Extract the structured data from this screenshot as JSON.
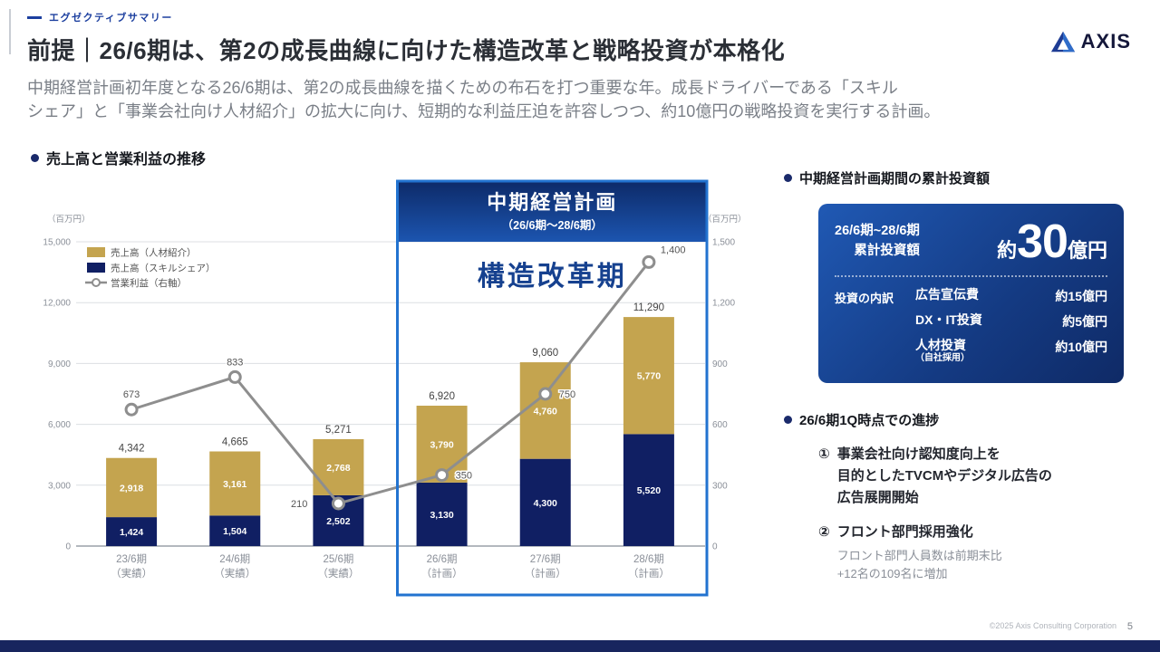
{
  "slide": {
    "eyebrow": "エグゼクティブサマリー",
    "title": "前提｜26/6期は、第2の成長曲線に向けた構造改革と戦略投資が本格化",
    "lead": "中期経営計画初年度となる26/6期は、第2の成長曲線を描くための布石を打つ重要な年。成長ドライバーである「スキル\nシェア」と「事業会社向け人材紹介」の拡大に向け、短期的な利益圧迫を許容しつつ、約10億円の戦略投資を実行する計画。",
    "logo_text": "AXIS",
    "footer_copyright": "©2025 Axis Consulting Corporation",
    "page_number": "5"
  },
  "chart_section": {
    "heading": "売上高と営業利益の推移"
  },
  "chart_data": {
    "type": "bar",
    "subtype": "stacked bars with line on secondary axis",
    "categories": [
      "23/6期",
      "24/6期",
      "25/6期",
      "26/6期",
      "27/6期",
      "28/6期"
    ],
    "category_notes": [
      "（実績）",
      "（実績）",
      "（実績）",
      "（計画）",
      "（計画）",
      "（計画）"
    ],
    "series": [
      {
        "name": "売上高（人材紹介）",
        "type": "bar",
        "stack": "top",
        "color": "#c4a44f",
        "values": [
          2918,
          3161,
          2768,
          3790,
          4760,
          5770
        ]
      },
      {
        "name": "売上高（スキルシェア）",
        "type": "bar",
        "stack": "bottom",
        "color": "#101f63",
        "values": [
          1424,
          1504,
          2502,
          3130,
          4300,
          5520
        ]
      },
      {
        "name": "営業利益（右軸）",
        "type": "line",
        "axis": "right",
        "color": "#8e8e8e",
        "values": [
          673,
          833,
          210,
          350,
          750,
          1400
        ]
      }
    ],
    "totals": [
      4342,
      4665,
      5271,
      6920,
      9060,
      11290
    ],
    "left_axis": {
      "min": 0,
      "max": 15000,
      "step": 3000,
      "label": "（百万円）"
    },
    "right_axis": {
      "min": 0,
      "max": 1500,
      "step": 300,
      "label": "（百万円）"
    },
    "grid": true,
    "legend_position": "top-left inside plot",
    "highlight_range": [
      3,
      5
    ],
    "highlight": {
      "title": "中期経営計画",
      "subtitle": "（26/6期～28/6期）",
      "label": "構造改革期"
    }
  },
  "investment": {
    "heading": "中期経営計画期間の累計投資額",
    "period_line1": "26/6期~28/6期",
    "period_line2": "累計投資額",
    "amount_prefix": "約",
    "amount_value": "30",
    "amount_suffix": "億円",
    "breakdown_label": "投資の内訳",
    "breakdown": [
      {
        "label": "広告宣伝費",
        "value": "約15億円",
        "note": ""
      },
      {
        "label": "DX・IT投資",
        "value": "約5億円",
        "note": ""
      },
      {
        "label": "人材投資",
        "value": "約10億円",
        "note": "（自社採用）"
      }
    ]
  },
  "progress": {
    "heading": "26/6期1Q時点での進捗",
    "items": [
      {
        "number": "①",
        "title": "事業会社向け認知度向上を\n目的としたTVCMやデジタル広告の\n広告展開開始",
        "detail": ""
      },
      {
        "number": "②",
        "title": "フロント部門採用強化",
        "detail": "フロント部門人員数は前期末比\n+12名の109名に増加"
      }
    ]
  },
  "colors": {
    "accent_blue": "#1c3f9f",
    "bar_navy": "#101f63",
    "bar_gold": "#c4a44f",
    "line_gray": "#8e8e8e",
    "highlight_border": "#2273d0",
    "card_blue_top": "#2059b4",
    "card_blue_bottom": "#0f2a66",
    "bottom_bar": "#18255e"
  }
}
